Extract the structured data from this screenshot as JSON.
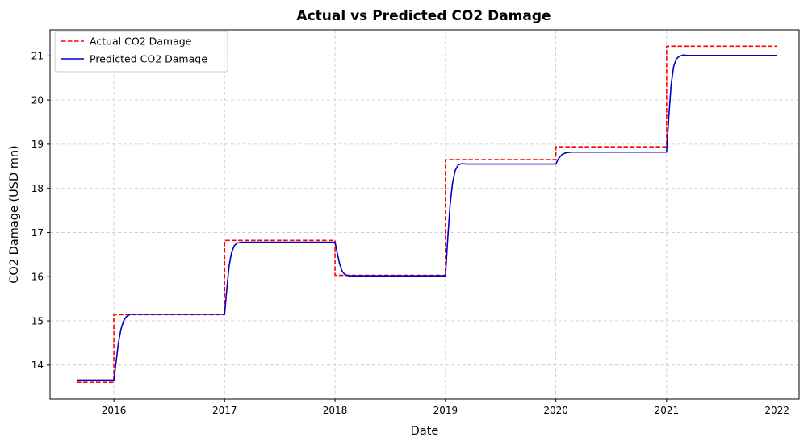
{
  "chart_data": {
    "type": "line",
    "title": "Actual vs Predicted CO2 Damage",
    "xlabel": "Date",
    "ylabel": "CO2 Damage (USD mn)",
    "xlim": [
      "2015-06-04",
      "2022-03-15"
    ],
    "ylim": [
      13.23,
      21.59
    ],
    "xticks": [
      "2016",
      "2017",
      "2018",
      "2019",
      "2020",
      "2021",
      "2022"
    ],
    "yticks": [
      14,
      15,
      16,
      17,
      18,
      19,
      20,
      21
    ],
    "grid": true,
    "legend_position": "top-left",
    "series": [
      {
        "name": "Actual CO2 Damage",
        "color": "#ff0000",
        "style": "dashed",
        "points": [
          [
            "2015-08-31",
            13.61
          ],
          [
            "2016-01-01",
            13.61
          ],
          [
            "2016-01-01",
            15.14
          ],
          [
            "2017-01-01",
            15.14
          ],
          [
            "2017-01-01",
            16.82
          ],
          [
            "2018-01-01",
            16.82
          ],
          [
            "2018-01-01",
            16.03
          ],
          [
            "2019-01-01",
            16.03
          ],
          [
            "2019-01-01",
            18.65
          ],
          [
            "2020-01-01",
            18.65
          ],
          [
            "2020-01-01",
            18.94
          ],
          [
            "2021-01-01",
            18.94
          ],
          [
            "2021-01-01",
            21.22
          ],
          [
            "2021-12-31",
            21.22
          ]
        ]
      },
      {
        "name": "Predicted CO2 Damage",
        "color": "#0000cc",
        "style": "solid",
        "points": [
          [
            "2015-08-31",
            13.66
          ],
          [
            "2016-01-01",
            13.66
          ],
          [
            "2016-01-08",
            14.05
          ],
          [
            "2016-01-16",
            14.5
          ],
          [
            "2016-01-24",
            14.8
          ],
          [
            "2016-02-02",
            15.0
          ],
          [
            "2016-02-12",
            15.1
          ],
          [
            "2016-02-25",
            15.15
          ],
          [
            "2017-01-01",
            15.15
          ],
          [
            "2017-01-08",
            15.7
          ],
          [
            "2017-01-16",
            16.25
          ],
          [
            "2017-01-24",
            16.55
          ],
          [
            "2017-02-02",
            16.7
          ],
          [
            "2017-02-12",
            16.76
          ],
          [
            "2017-02-25",
            16.78
          ],
          [
            "2018-01-01",
            16.78
          ],
          [
            "2018-01-08",
            16.55
          ],
          [
            "2018-01-16",
            16.3
          ],
          [
            "2018-01-24",
            16.13
          ],
          [
            "2018-02-02",
            16.05
          ],
          [
            "2018-02-15",
            16.02
          ],
          [
            "2019-01-01",
            16.02
          ],
          [
            "2019-01-08",
            16.8
          ],
          [
            "2019-01-16",
            17.6
          ],
          [
            "2019-01-24",
            18.1
          ],
          [
            "2019-02-02",
            18.4
          ],
          [
            "2019-02-12",
            18.53
          ],
          [
            "2019-02-25",
            18.56
          ],
          [
            "2019-03-10",
            18.55
          ],
          [
            "2020-01-01",
            18.55
          ],
          [
            "2020-01-10",
            18.68
          ],
          [
            "2020-01-22",
            18.77
          ],
          [
            "2020-02-05",
            18.81
          ],
          [
            "2020-02-25",
            18.82
          ],
          [
            "2021-01-01",
            18.82
          ],
          [
            "2021-01-08",
            19.6
          ],
          [
            "2021-01-16",
            20.35
          ],
          [
            "2021-01-24",
            20.75
          ],
          [
            "2021-02-02",
            20.93
          ],
          [
            "2021-02-12",
            20.99
          ],
          [
            "2021-02-25",
            21.02
          ],
          [
            "2021-03-10",
            21.01
          ],
          [
            "2021-12-31",
            21.01
          ]
        ]
      }
    ]
  }
}
